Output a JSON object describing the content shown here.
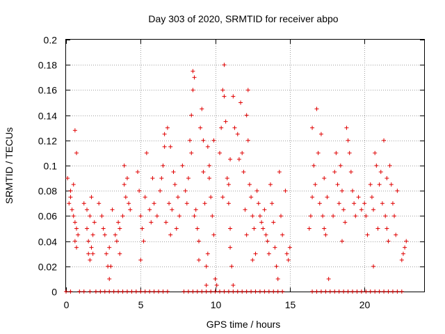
{
  "chart_data": {
    "type": "scatter",
    "title": "Day 303 of 2020, SRMTID for receiver abpo",
    "xlabel": "GPS time / hours",
    "ylabel": "SRMTID / TECUs",
    "xlim": [
      0,
      24
    ],
    "ylim": [
      0,
      0.2
    ],
    "xticks": [
      0,
      5,
      10,
      15,
      20
    ],
    "xtick_labels": [
      "0",
      "5",
      "10",
      "15",
      "20"
    ],
    "yticks": [
      0,
      0.02,
      0.04,
      0.06,
      0.08,
      0.1,
      0.12,
      0.14,
      0.16,
      0.18,
      0.2
    ],
    "ytick_labels": [
      "0",
      "0.02",
      "0.04",
      "0.06",
      "0.08",
      "0.1",
      "0.12",
      "0.14",
      "0.16",
      "0.18",
      "0.2"
    ],
    "grid": true,
    "marker": "+",
    "color": "#e00000",
    "series": [
      {
        "name": "SRMTID",
        "points": [
          [
            0.1,
            0.09
          ],
          [
            0.2,
            0.07
          ],
          [
            0.3,
            0.08
          ],
          [
            0.4,
            0.065
          ],
          [
            0.5,
            0.06
          ],
          [
            0.6,
            0.055
          ],
          [
            0.6,
            0.128
          ],
          [
            0.7,
            0.11
          ],
          [
            0.7,
            0.05
          ],
          [
            0.8,
            0.045
          ],
          [
            0.5,
            0.085
          ],
          [
            0.6,
            0.04
          ],
          [
            0.7,
            0.035
          ],
          [
            0.3,
            0.075
          ],
          [
            1.2,
            0.07
          ],
          [
            1.4,
            0.05
          ],
          [
            1.5,
            0.04
          ],
          [
            1.5,
            0.03
          ],
          [
            1.6,
            0.025
          ],
          [
            1.7,
            0.035
          ],
          [
            1.8,
            0.045
          ],
          [
            1.9,
            0.055
          ],
          [
            1.6,
            0.06
          ],
          [
            1.8,
            0.03
          ],
          [
            1.4,
            0.065
          ],
          [
            1.7,
            0.075
          ],
          [
            2.2,
            0.07
          ],
          [
            2.4,
            0.06
          ],
          [
            2.5,
            0.05
          ],
          [
            2.7,
            0.03
          ],
          [
            2.8,
            0.02
          ],
          [
            2.9,
            0.01
          ],
          [
            3.0,
            0.02
          ],
          [
            2.9,
            0.035
          ],
          [
            2.6,
            0.045
          ],
          [
            3.1,
            0.065
          ],
          [
            3.3,
            0.045
          ],
          [
            3.4,
            0.04
          ],
          [
            3.5,
            0.055
          ],
          [
            3.6,
            0.05
          ],
          [
            3.8,
            0.06
          ],
          [
            3.9,
            0.085
          ],
          [
            3.9,
            0.1
          ],
          [
            4.0,
            0.075
          ],
          [
            4.2,
            0.07
          ],
          [
            4.3,
            0.065
          ],
          [
            3.6,
            0.03
          ],
          [
            4.1,
            0.09
          ],
          [
            4.8,
            0.095
          ],
          [
            4.9,
            0.08
          ],
          [
            5.0,
            0.06
          ],
          [
            5.1,
            0.05
          ],
          [
            5.0,
            0.025
          ],
          [
            5.2,
            0.04
          ],
          [
            5.4,
            0.11
          ],
          [
            5.3,
            0.075
          ],
          [
            5.6,
            0.065
          ],
          [
            5.7,
            0.055
          ],
          [
            5.8,
            0.09
          ],
          [
            5.9,
            0.07
          ],
          [
            6.1,
            0.06
          ],
          [
            6.3,
            0.08
          ],
          [
            6.5,
            0.1
          ],
          [
            6.6,
            0.115
          ],
          [
            6.6,
            0.125
          ],
          [
            6.8,
            0.13
          ],
          [
            7.0,
            0.115
          ],
          [
            6.9,
            0.07
          ],
          [
            7.1,
            0.065
          ],
          [
            6.7,
            0.055
          ],
          [
            7.2,
            0.095
          ],
          [
            7.3,
            0.085
          ],
          [
            7.4,
            0.05
          ],
          [
            7.0,
            0.045
          ],
          [
            6.4,
            0.09
          ],
          [
            7.5,
            0.075
          ],
          [
            7.6,
            0.06
          ],
          [
            7.8,
            0.1
          ],
          [
            8.0,
            0.08
          ],
          [
            8.1,
            0.07
          ],
          [
            8.3,
            0.12
          ],
          [
            8.4,
            0.14
          ],
          [
            8.5,
            0.16
          ],
          [
            8.5,
            0.175
          ],
          [
            8.6,
            0.17
          ],
          [
            8.4,
            0.11
          ],
          [
            8.6,
            0.06
          ],
          [
            8.8,
            0.05
          ],
          [
            8.9,
            0.04
          ],
          [
            8.7,
            0.065
          ],
          [
            8.2,
            0.09
          ],
          [
            8.9,
            0.025
          ],
          [
            9.0,
            0.13
          ],
          [
            9.1,
            0.145
          ],
          [
            9.2,
            0.12
          ],
          [
            9.2,
            0.095
          ],
          [
            9.3,
            0.07
          ],
          [
            9.4,
            0.02
          ],
          [
            9.4,
            0.005
          ],
          [
            9.5,
            0.03
          ],
          [
            9.5,
            0.115
          ],
          [
            9.6,
            0.09
          ],
          [
            9.7,
            0.075
          ],
          [
            9.8,
            0.06
          ],
          [
            9.9,
            0.045
          ],
          [
            10.0,
            0.01
          ],
          [
            10.1,
            0.005
          ],
          [
            9.9,
            0.12
          ],
          [
            9.6,
            0.1
          ],
          [
            10.3,
            0.11
          ],
          [
            10.4,
            0.13
          ],
          [
            10.5,
            0.16
          ],
          [
            10.6,
            0.18
          ],
          [
            10.6,
            0.155
          ],
          [
            10.7,
            0.135
          ],
          [
            10.8,
            0.09
          ],
          [
            10.9,
            0.07
          ],
          [
            11.0,
            0.05
          ],
          [
            11.0,
            0.035
          ],
          [
            11.1,
            0.02
          ],
          [
            11.2,
            0.005
          ],
          [
            11.2,
            0.155
          ],
          [
            11.3,
            0.13
          ],
          [
            11.0,
            0.105
          ],
          [
            10.5,
            0.075
          ],
          [
            10.9,
            0.085
          ],
          [
            11.5,
            0.125
          ],
          [
            11.6,
            0.105
          ],
          [
            11.7,
            0.15
          ],
          [
            11.8,
            0.11
          ],
          [
            11.9,
            0.095
          ],
          [
            12.0,
            0.065
          ],
          [
            12.1,
            0.14
          ],
          [
            12.2,
            0.16
          ],
          [
            12.2,
            0.12
          ],
          [
            12.3,
            0.085
          ],
          [
            12.4,
            0.075
          ],
          [
            12.5,
            0.06
          ],
          [
            12.6,
            0.05
          ],
          [
            12.5,
            0.025
          ],
          [
            12.7,
            0.03
          ],
          [
            12.1,
            0.045
          ],
          [
            12.8,
            0.08
          ],
          [
            12.9,
            0.07
          ],
          [
            13.0,
            0.06
          ],
          [
            13.1,
            0.055
          ],
          [
            13.2,
            0.05
          ],
          [
            13.3,
            0.065
          ],
          [
            13.4,
            0.045
          ],
          [
            13.5,
            0.04
          ],
          [
            13.6,
            0.03
          ],
          [
            13.7,
            0.085
          ],
          [
            13.8,
            0.07
          ],
          [
            13.9,
            0.055
          ],
          [
            14.0,
            0.035
          ],
          [
            14.1,
            0.02
          ],
          [
            14.2,
            0.01
          ],
          [
            14.3,
            0.095
          ],
          [
            14.4,
            0.06
          ],
          [
            14.5,
            0.045
          ],
          [
            14.7,
            0.08
          ],
          [
            14.8,
            0.03
          ],
          [
            14.9,
            0.025
          ],
          [
            15.0,
            0.035
          ],
          [
            16.3,
            0.05
          ],
          [
            16.4,
            0.06
          ],
          [
            16.5,
            0.075
          ],
          [
            16.5,
            0.13
          ],
          [
            16.6,
            0.1
          ],
          [
            16.7,
            0.085
          ],
          [
            16.8,
            0.145
          ],
          [
            16.9,
            0.11
          ],
          [
            17.0,
            0.07
          ],
          [
            17.1,
            0.125
          ],
          [
            17.2,
            0.06
          ],
          [
            17.3,
            0.05
          ],
          [
            17.4,
            0.045
          ],
          [
            17.5,
            0.075
          ],
          [
            17.6,
            0.01
          ],
          [
            17.3,
            0.09
          ],
          [
            17.9,
            0.06
          ],
          [
            18.0,
            0.095
          ],
          [
            18.1,
            0.11
          ],
          [
            18.2,
            0.085
          ],
          [
            18.3,
            0.07
          ],
          [
            18.4,
            0.1
          ],
          [
            18.5,
            0.08
          ],
          [
            18.6,
            0.065
          ],
          [
            18.7,
            0.055
          ],
          [
            18.8,
            0.13
          ],
          [
            18.9,
            0.12
          ],
          [
            19.0,
            0.11
          ],
          [
            19.1,
            0.095
          ],
          [
            19.2,
            0.08
          ],
          [
            19.3,
            0.07
          ],
          [
            19.4,
            0.06
          ],
          [
            18.5,
            0.04
          ],
          [
            19.6,
            0.075
          ],
          [
            19.8,
            0.065
          ],
          [
            20.0,
            0.07
          ],
          [
            20.1,
            0.06
          ],
          [
            20.2,
            0.045
          ],
          [
            20.4,
            0.085
          ],
          [
            20.5,
            0.075
          ],
          [
            20.6,
            0.065
          ],
          [
            20.7,
            0.11
          ],
          [
            20.8,
            0.1
          ],
          [
            20.6,
            0.02
          ],
          [
            20.9,
            0.05
          ],
          [
            21.0,
            0.085
          ],
          [
            21.1,
            0.095
          ],
          [
            21.2,
            0.07
          ],
          [
            21.3,
            0.12
          ],
          [
            21.4,
            0.06
          ],
          [
            21.5,
            0.05
          ],
          [
            21.6,
            0.04
          ],
          [
            21.7,
            0.1
          ],
          [
            21.8,
            0.085
          ],
          [
            21.9,
            0.07
          ],
          [
            22.0,
            0.06
          ],
          [
            22.1,
            0.045
          ],
          [
            22.2,
            0.08
          ],
          [
            21.5,
            0.09
          ],
          [
            22.6,
            0.03
          ],
          [
            22.7,
            0.035
          ],
          [
            22.8,
            0.04
          ],
          [
            22.5,
            0.025
          ]
        ]
      }
    ],
    "zero_hours": [
      0.0,
      0.3,
      0.9,
      1.2,
      1.6,
      2.0,
      2.3,
      2.6,
      2.9,
      3.2,
      3.5,
      3.8,
      4.1,
      4.4,
      4.7,
      5.0,
      5.3,
      5.6,
      5.9,
      6.2,
      6.5,
      6.8,
      7.9,
      8.2,
      8.5,
      8.8,
      9.1,
      9.4,
      9.7,
      10.0,
      10.3,
      10.6,
      10.9,
      11.2,
      11.5,
      11.8,
      12.1,
      12.4,
      12.7,
      13.0,
      13.3,
      13.6,
      13.9,
      14.2,
      14.5,
      16.5,
      16.8,
      17.1,
      17.4,
      17.7,
      18.0,
      18.3,
      18.6,
      18.9,
      19.2,
      19.5,
      19.8,
      20.1,
      20.4,
      20.7,
      21.0,
      21.3,
      21.6,
      21.9,
      22.2,
      22.5
    ]
  }
}
